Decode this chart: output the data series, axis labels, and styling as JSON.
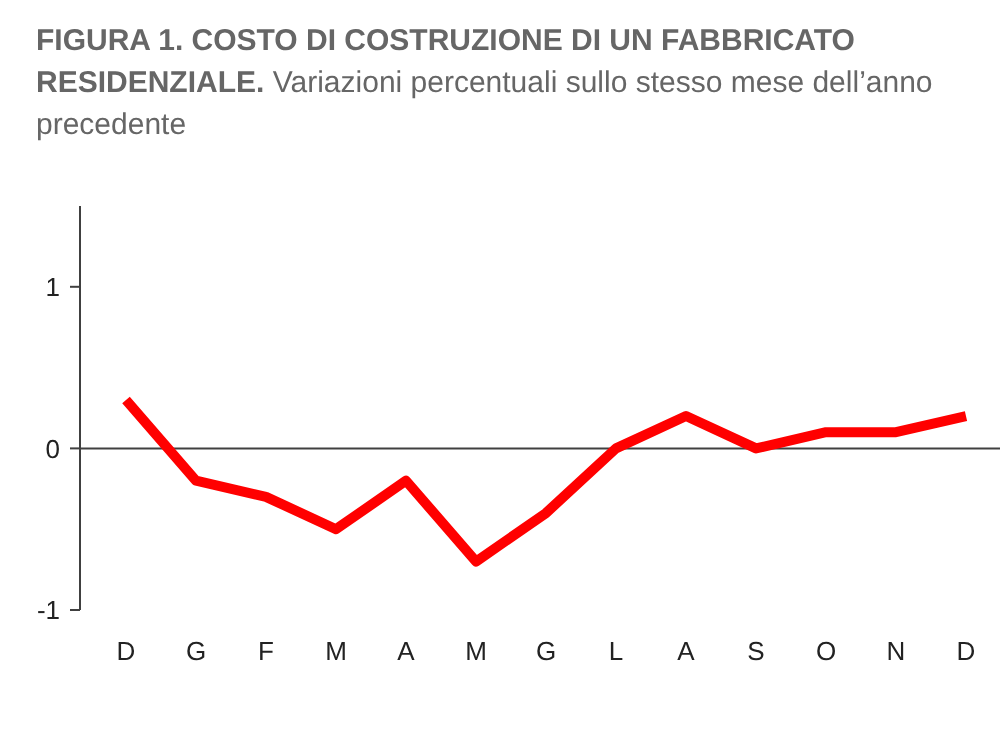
{
  "chart_data": {
    "type": "line",
    "title": "FIGURA 1. COSTO DI COSTRUZIONE DI UN FABBRICATO RESIDENZIALE.",
    "subtitle": "Variazioni percentuali sullo stesso mese dell’anno precedente",
    "categories": [
      "D",
      "G",
      "F",
      "M",
      "A",
      "M",
      "G",
      "L",
      "A",
      "S",
      "O",
      "N",
      "D"
    ],
    "series": [
      {
        "color": "#ff0000",
        "values": [
          0.3,
          -0.2,
          -0.3,
          -0.5,
          -0.2,
          -0.7,
          -0.4,
          0,
          0.2,
          0,
          0.1,
          0.1,
          0.2
        ]
      }
    ],
    "ylim": [
      -1,
      1.5
    ],
    "yticks": [
      -1,
      0,
      1
    ],
    "ref_lines": [
      {
        "axis": "y",
        "value": 0,
        "color": "#404040"
      }
    ],
    "grid": false,
    "marker": "none",
    "line_style": "solid"
  }
}
